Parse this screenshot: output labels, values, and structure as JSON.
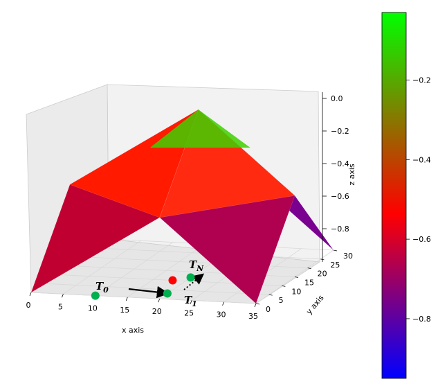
{
  "chart_data": {
    "type": "surface",
    "title": "",
    "xlabel": "x axis",
    "ylabel": "y axis",
    "zlabel": "z axis",
    "xlim": [
      0,
      35
    ],
    "ylim": [
      0,
      30
    ],
    "zlim": [
      -0.95,
      0.0
    ],
    "x_ticks": [
      "0",
      "5",
      "10",
      "15",
      "20",
      "25",
      "30",
      "35"
    ],
    "y_ticks": [
      "0",
      "5",
      "10",
      "15",
      "20",
      "25",
      "30"
    ],
    "z_ticks": [
      "0.0",
      "−0.2",
      "−0.4",
      "−0.6",
      "−0.8"
    ],
    "surface": {
      "peak": {
        "x": 20,
        "y": 15,
        "z": -0.05
      },
      "corners": [
        {
          "x": 0,
          "y": 0,
          "z": -0.95
        },
        {
          "x": 35,
          "y": 0,
          "z": -0.95
        },
        {
          "x": 35,
          "y": 30,
          "z": -0.95
        },
        {
          "x": 0,
          "y": 30,
          "z": -0.95
        }
      ],
      "edge_midpoints": [
        {
          "x": 20,
          "y": 0,
          "z": -0.5
        },
        {
          "x": 35,
          "y": 15,
          "z": -0.5
        },
        {
          "x": 20,
          "y": 30,
          "z": -0.5
        },
        {
          "x": 0,
          "y": 15,
          "z": -0.5
        }
      ]
    },
    "points": [
      {
        "name": "T_0",
        "x": 10,
        "y": 0,
        "z": -0.95,
        "color": "#00b050"
      },
      {
        "name": "T_1",
        "x": 20,
        "y": 3,
        "z": -0.95,
        "color": "#00b050"
      },
      {
        "name": "",
        "x": 18,
        "y": 10,
        "z": -0.95,
        "color": "#ff0000"
      },
      {
        "name": "T_N",
        "x": 20,
        "y": 12,
        "z": -0.95,
        "color": "#00b050"
      }
    ],
    "arrows": [
      {
        "from": "T_0",
        "to": "T_1",
        "style": "solid"
      },
      {
        "from": "T_1",
        "to": "T_N",
        "style": "dotted"
      }
    ],
    "colorbar": {
      "ticks": [
        "−0.2",
        "−0.4",
        "−0.6",
        "−0.8"
      ],
      "tick_values": [
        -0.2,
        -0.4,
        -0.6,
        -0.8
      ],
      "range": [
        -0.95,
        -0.03
      ],
      "colors": [
        "#0000ff",
        "#ff0000",
        "#00ff00"
      ]
    },
    "grid": true,
    "labels": {
      "t0": "T",
      "t0_sub": "0",
      "t1": "T",
      "t1_sub": "1",
      "tn": "T",
      "tn_sub": "N"
    }
  }
}
